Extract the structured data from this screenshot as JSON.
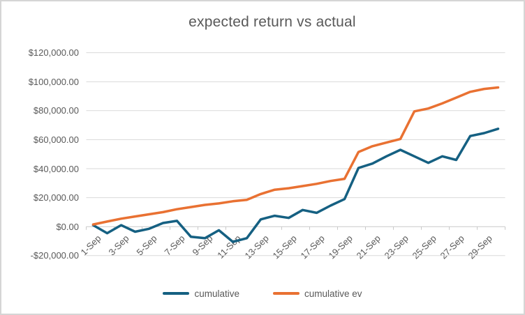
{
  "chart_data": {
    "type": "line",
    "title": "expected return vs actual",
    "categories": [
      "1-Sep",
      "2-Sep",
      "3-Sep",
      "4-Sep",
      "5-Sep",
      "6-Sep",
      "7-Sep",
      "8-Sep",
      "9-Sep",
      "10-Sep",
      "11-Sep",
      "12-Sep",
      "13-Sep",
      "14-Sep",
      "15-Sep",
      "16-Sep",
      "17-Sep",
      "18-Sep",
      "19-Sep",
      "20-Sep",
      "21-Sep",
      "22-Sep",
      "23-Sep",
      "24-Sep",
      "25-Sep",
      "26-Sep",
      "27-Sep",
      "28-Sep",
      "29-Sep",
      "30-Sep"
    ],
    "x_tick_labels": [
      "1-Sep",
      "3-Sep",
      "5-Sep",
      "7-Sep",
      "9-Sep",
      "11-Sep",
      "13-Sep",
      "15-Sep",
      "17-Sep",
      "19-Sep",
      "21-Sep",
      "23-Sep",
      "25-Sep",
      "27-Sep",
      "29-Sep"
    ],
    "series": [
      {
        "name": "cumulative",
        "color": "#156082",
        "values": [
          1000,
          -4500,
          1000,
          -3500,
          -1500,
          2500,
          4000,
          -7000,
          -8000,
          -2500,
          -10500,
          -8000,
          5000,
          7500,
          6000,
          11500,
          9500,
          14500,
          19000,
          40500,
          43500,
          48500,
          53000,
          48500,
          44000,
          48500,
          46000,
          62500,
          64500,
          67500
        ]
      },
      {
        "name": "cumulative ev",
        "color": "#E97132",
        "values": [
          1500,
          3500,
          5500,
          7000,
          8500,
          10000,
          12000,
          13500,
          15000,
          16000,
          17500,
          18500,
          22500,
          25500,
          26500,
          28000,
          29500,
          31500,
          33000,
          51500,
          55500,
          58000,
          60500,
          79500,
          81500,
          85000,
          89000,
          93000,
          95000,
          96000
        ]
      }
    ],
    "y_axis": {
      "min": -20000,
      "max": 120000,
      "step": 20000,
      "tick_labels": [
        "$120,000.00",
        "$100,000.00",
        "$80,000.00",
        "$60,000.00",
        "$40,000.00",
        "$20,000.00",
        "$0.00",
        "-$20,000.00"
      ]
    },
    "legend": {
      "position": "bottom"
    },
    "grid": true,
    "colors": {
      "gridline": "#D9D9D9",
      "axis": "#C9C9C9",
      "text": "#595959"
    }
  }
}
